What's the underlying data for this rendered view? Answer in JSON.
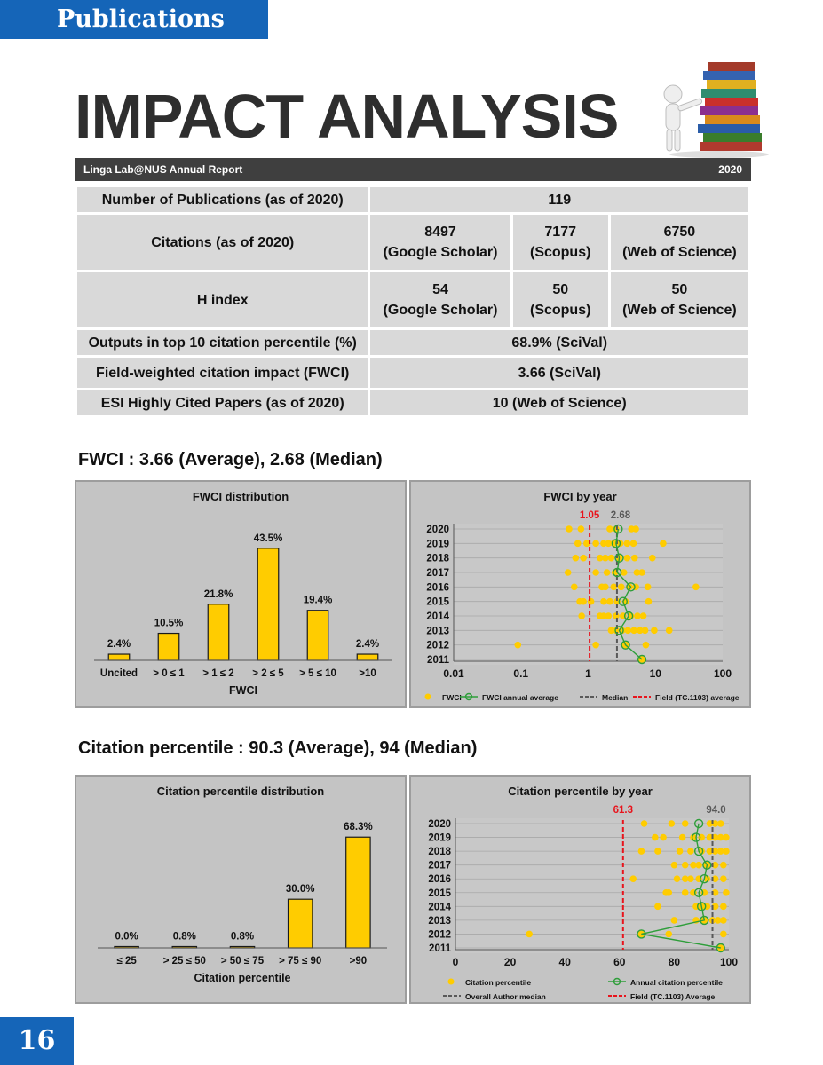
{
  "header": {
    "section": "Publications",
    "page_title": "IMPACT ANALYSIS",
    "report_name": "Linga Lab@NUS Annual Report",
    "year": "2020"
  },
  "metrics_table": {
    "publications_label": "Number of Publications (as of 2020)",
    "publications_value": "119",
    "citations_label": "Citations (as of 2020)",
    "citations": [
      {
        "value": "8497",
        "source": "(Google Scholar)"
      },
      {
        "value": "7177",
        "source": "(Scopus)"
      },
      {
        "value": "6750",
        "source": "(Web of Science)"
      }
    ],
    "hindex_label": "H index",
    "hindex": [
      {
        "value": "54",
        "source": "(Google Scholar)"
      },
      {
        "value": "50",
        "source": "(Scopus)"
      },
      {
        "value": "50",
        "source": "(Web of Science)"
      }
    ],
    "top10_label": "Outputs in top 10 citation percentile (%)",
    "top10_value": "68.9% (SciVal)",
    "fwci_label": "Field-weighted citation impact (FWCI)",
    "fwci_value": "3.66 (SciVal)",
    "esi_label": "ESI Highly Cited Papers (as of 2020)",
    "esi_value": "10 (Web of Science)"
  },
  "fwci_heading": "FWCI : 3.66 (Average), 2.68 (Median)",
  "percentile_heading": "Citation percentile : 90.3 (Average), 94 (Median)",
  "page_number": "16",
  "colors": {
    "accent_blue": "#1565b8",
    "bar_yellow": "#ffcc00",
    "annual_green": "#2e9e3a",
    "field_red": "#e8141c",
    "median_gray": "#595959"
  },
  "chart_data": [
    {
      "type": "bar",
      "title": "FWCI distribution",
      "xlabel": "FWCI",
      "ylabel": "",
      "categories": [
        "Uncited",
        "> 0 ≤ 1",
        "> 1 ≤ 2",
        "> 2 ≤ 5",
        "> 5 ≤ 10",
        ">10"
      ],
      "values": [
        2.4,
        10.5,
        21.8,
        43.5,
        19.4,
        2.4
      ],
      "data_labels": [
        "2.4%",
        "10.5%",
        "21.8%",
        "43.5%",
        "19.4%",
        "2.4%"
      ],
      "ylim": [
        0,
        50
      ],
      "grid": false,
      "legend": "none"
    },
    {
      "type": "scatter",
      "title": "FWCI by year",
      "x_scale": "log",
      "xlim": [
        0.01,
        100
      ],
      "x_ticks": [
        "0.01",
        "0.1",
        "1",
        "10",
        "100"
      ],
      "y_categories": [
        "2011",
        "2012",
        "2013",
        "2014",
        "2015",
        "2016",
        "2017",
        "2018",
        "2019",
        "2020"
      ],
      "series": [
        {
          "name": "FWCI",
          "points": [
            [
              6.3,
              "2011"
            ],
            [
              0.09,
              "2012"
            ],
            [
              3.6,
              "2012"
            ],
            [
              7.2,
              "2012"
            ],
            [
              1.3,
              "2012"
            ],
            [
              2.2,
              "2013"
            ],
            [
              2.6,
              "2013"
            ],
            [
              3.2,
              "2013"
            ],
            [
              3.9,
              "2013"
            ],
            [
              4.8,
              "2013"
            ],
            [
              5.9,
              "2013"
            ],
            [
              7.0,
              "2013"
            ],
            [
              9.6,
              "2013"
            ],
            [
              16.0,
              "2013"
            ],
            [
              1.5,
              "2014"
            ],
            [
              1.7,
              "2014"
            ],
            [
              2.0,
              "2014"
            ],
            [
              2.6,
              "2014"
            ],
            [
              3.3,
              "2014"
            ],
            [
              4.3,
              "2014"
            ],
            [
              5.4,
              "2014"
            ],
            [
              6.6,
              "2014"
            ],
            [
              0.8,
              "2014"
            ],
            [
              0.75,
              "2015"
            ],
            [
              0.85,
              "2015"
            ],
            [
              1.1,
              "2015"
            ],
            [
              1.7,
              "2015"
            ],
            [
              2.1,
              "2015"
            ],
            [
              2.7,
              "2015"
            ],
            [
              3.6,
              "2015"
            ],
            [
              7.9,
              "2015"
            ],
            [
              0.62,
              "2016"
            ],
            [
              1.6,
              "2016"
            ],
            [
              1.8,
              "2016"
            ],
            [
              2.4,
              "2016"
            ],
            [
              3.1,
              "2016"
            ],
            [
              4.1,
              "2016"
            ],
            [
              5.1,
              "2016"
            ],
            [
              7.7,
              "2016"
            ],
            [
              40.0,
              "2016"
            ],
            [
              0.5,
              "2017"
            ],
            [
              1.3,
              "2017"
            ],
            [
              1.9,
              "2017"
            ],
            [
              2.5,
              "2017"
            ],
            [
              3.4,
              "2017"
            ],
            [
              5.3,
              "2017"
            ],
            [
              6.3,
              "2017"
            ],
            [
              0.65,
              "2018"
            ],
            [
              0.85,
              "2018"
            ],
            [
              1.5,
              "2018"
            ],
            [
              1.8,
              "2018"
            ],
            [
              2.2,
              "2018"
            ],
            [
              2.9,
              "2018"
            ],
            [
              3.8,
              "2018"
            ],
            [
              4.9,
              "2018"
            ],
            [
              9.0,
              "2018"
            ],
            [
              0.7,
              "2019"
            ],
            [
              0.95,
              "2019"
            ],
            [
              1.3,
              "2019"
            ],
            [
              1.7,
              "2019"
            ],
            [
              2.0,
              "2019"
            ],
            [
              2.4,
              "2019"
            ],
            [
              3.0,
              "2019"
            ],
            [
              3.8,
              "2019"
            ],
            [
              4.7,
              "2019"
            ],
            [
              13.0,
              "2019"
            ],
            [
              0.52,
              "2020"
            ],
            [
              0.78,
              "2020"
            ],
            [
              2.1,
              "2020"
            ],
            [
              2.6,
              "2020"
            ],
            [
              4.4,
              "2020"
            ],
            [
              5.1,
              "2020"
            ]
          ]
        },
        {
          "name": "FWCI annual average",
          "points": [
            [
              6.3,
              "2011"
            ],
            [
              3.6,
              "2012"
            ],
            [
              2.9,
              "2013"
            ],
            [
              4.0,
              "2014"
            ],
            [
              3.3,
              "2015"
            ],
            [
              4.3,
              "2016"
            ],
            [
              2.7,
              "2017"
            ],
            [
              2.9,
              "2018"
            ],
            [
              2.6,
              "2019"
            ],
            [
              2.8,
              "2020"
            ]
          ]
        },
        {
          "name": "Median",
          "x": 2.68,
          "label": "2.68"
        },
        {
          "name": "Field (TC.1103) average",
          "x": 1.05,
          "label": "1.05"
        }
      ],
      "legend": "bottom"
    },
    {
      "type": "bar",
      "title": "Citation percentile distribution",
      "xlabel": "Citation percentile",
      "ylabel": "",
      "categories": [
        "≤ 25",
        "> 25 ≤ 50",
        "> 50 ≤ 75",
        "> 75 ≤ 90",
        ">90"
      ],
      "values": [
        0.0,
        0.8,
        0.8,
        30.0,
        68.3
      ],
      "data_labels": [
        "0.0%",
        "0.8%",
        "0.8%",
        "30.0%",
        "68.3%"
      ],
      "ylim": [
        0,
        75
      ],
      "grid": false,
      "legend": "none"
    },
    {
      "type": "scatter",
      "title": "Citation percentile by year",
      "xlim": [
        0,
        100
      ],
      "x_ticks": [
        "0",
        "20",
        "40",
        "60",
        "80",
        "100"
      ],
      "y_categories": [
        "2011",
        "2012",
        "2013",
        "2014",
        "2015",
        "2016",
        "2017",
        "2018",
        "2019",
        "2020"
      ],
      "series": [
        {
          "name": "Citation percentile",
          "points": [
            [
              97,
              "2011"
            ],
            [
              27,
              "2012"
            ],
            [
              78,
              "2012"
            ],
            [
              98,
              "2012"
            ],
            [
              68,
              "2012"
            ],
            [
              80,
              "2013"
            ],
            [
              88,
              "2013"
            ],
            [
              91,
              "2013"
            ],
            [
              94,
              "2013"
            ],
            [
              96,
              "2013"
            ],
            [
              98,
              "2013"
            ],
            [
              74,
              "2014"
            ],
            [
              88,
              "2014"
            ],
            [
              92,
              "2014"
            ],
            [
              95,
              "2014"
            ],
            [
              98,
              "2014"
            ],
            [
              90,
              "2014"
            ],
            [
              77,
              "2015"
            ],
            [
              78,
              "2015"
            ],
            [
              84,
              "2015"
            ],
            [
              87,
              "2015"
            ],
            [
              91,
              "2015"
            ],
            [
              95,
              "2015"
            ],
            [
              99,
              "2015"
            ],
            [
              65,
              "2016"
            ],
            [
              81,
              "2016"
            ],
            [
              84,
              "2016"
            ],
            [
              86,
              "2016"
            ],
            [
              89,
              "2016"
            ],
            [
              92,
              "2016"
            ],
            [
              95,
              "2016"
            ],
            [
              98,
              "2016"
            ],
            [
              80,
              "2017"
            ],
            [
              84,
              "2017"
            ],
            [
              87,
              "2017"
            ],
            [
              89,
              "2017"
            ],
            [
              92,
              "2017"
            ],
            [
              95,
              "2017"
            ],
            [
              98,
              "2017"
            ],
            [
              68,
              "2018"
            ],
            [
              74,
              "2018"
            ],
            [
              82,
              "2018"
            ],
            [
              86,
              "2018"
            ],
            [
              90,
              "2018"
            ],
            [
              93,
              "2018"
            ],
            [
              95,
              "2018"
            ],
            [
              97,
              "2018"
            ],
            [
              99,
              "2018"
            ],
            [
              73,
              "2019"
            ],
            [
              76,
              "2019"
            ],
            [
              83,
              "2019"
            ],
            [
              87,
              "2019"
            ],
            [
              90,
              "2019"
            ],
            [
              93,
              "2019"
            ],
            [
              95,
              "2019"
            ],
            [
              97,
              "2019"
            ],
            [
              99,
              "2019"
            ],
            [
              69,
              "2020"
            ],
            [
              79,
              "2020"
            ],
            [
              84,
              "2020"
            ],
            [
              93,
              "2020"
            ],
            [
              95,
              "2020"
            ],
            [
              97,
              "2020"
            ]
          ]
        },
        {
          "name": "Annual citation percentile",
          "points": [
            [
              97,
              "2011"
            ],
            [
              68,
              "2012"
            ],
            [
              91,
              "2013"
            ],
            [
              90,
              "2014"
            ],
            [
              89,
              "2015"
            ],
            [
              91,
              "2016"
            ],
            [
              92,
              "2017"
            ],
            [
              89,
              "2018"
            ],
            [
              88,
              "2019"
            ],
            [
              89,
              "2020"
            ]
          ]
        },
        {
          "name": "Overall Author median",
          "x": 94.0,
          "label": "94.0"
        },
        {
          "name": "Field (TC.1103) Average",
          "x": 61.3,
          "label": "61.3"
        }
      ],
      "legend": "bottom"
    }
  ]
}
